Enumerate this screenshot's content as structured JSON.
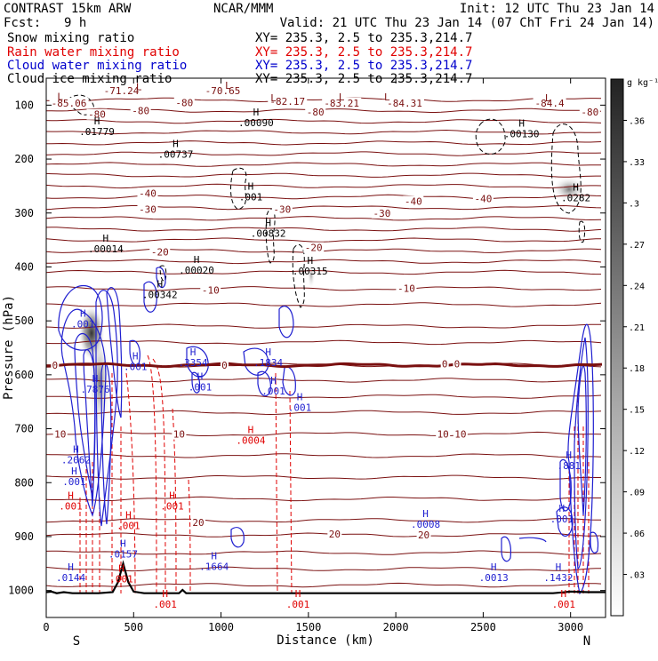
{
  "header": {
    "model": "CONTRAST 15km ARW",
    "institution": "NCAR/MMM",
    "init": "Init: 12 UTC Thu 23 Jan 14",
    "fcst_label": "Fcst:",
    "fcst_value": "9 h",
    "valid": "Valid: 21 UTC Thu 23 Jan 14 (07 ChT Fri 24 Jan 14)"
  },
  "fields": [
    {
      "name": "Snow mixing ratio",
      "xy": "XY= 235.3,  2.5 to 235.3,214.7",
      "color": "#000000"
    },
    {
      "name": "Rain water mixing ratio",
      "xy": "XY= 235.3,  2.5 to 235.3,214.7",
      "color": "#e00000"
    },
    {
      "name": "Cloud water mixing ratio",
      "xy": "XY= 235.3,  2.5 to 235.3,214.7",
      "color": "#0000cc"
    },
    {
      "name": "Cloud ice mixing ratio",
      "xy": "XY= 235.3,  2.5 to 235.3,214.7",
      "color": "#000000"
    }
  ],
  "colors": {
    "temperature": "#7a1010",
    "freezing": "#7a1010",
    "rain": "#e00000",
    "cloud_water": "#1f1fd0",
    "cloud_ice": "#000000",
    "terrain": "#000000"
  },
  "chart_data": {
    "type": "contour",
    "xlabel": "Distance (km)",
    "ylabel": "Pressure (hPa)",
    "xlim": [
      0,
      3200
    ],
    "ylim": [
      1050,
      50
    ],
    "x_ticks": [
      0,
      500,
      1000,
      1500,
      2000,
      2500,
      3000
    ],
    "y_ticks": [
      100,
      200,
      300,
      400,
      500,
      600,
      700,
      800,
      900,
      1000
    ],
    "x_end_labels": {
      "left": "S",
      "right": "N"
    },
    "colorbar": {
      "unit": "g kg⁻¹",
      "ticks": [
        ".03",
        ".06",
        ".09",
        ".12",
        ".15",
        ".18",
        ".21",
        ".24",
        ".27",
        ".3",
        ".33",
        ".36"
      ],
      "range": [
        0,
        0.39
      ]
    },
    "temperature_labels": [
      {
        "text": "-71.24",
        "x": 430,
        "p": 73
      },
      {
        "text": "-70.65",
        "x": 1010,
        "p": 73
      },
      {
        "text": "-85.06",
        "x": 130,
        "p": 96
      },
      {
        "text": "-82.17",
        "x": 1380,
        "p": 93
      },
      {
        "text": "-83.21",
        "x": 1690,
        "p": 96
      },
      {
        "text": "-84.31",
        "x": 2050,
        "p": 96
      },
      {
        "text": "-84.4",
        "x": 2880,
        "p": 96
      },
      {
        "text": "-80",
        "x": 290,
        "p": 117
      },
      {
        "text": "-80",
        "x": 540,
        "p": 110
      },
      {
        "text": "-80",
        "x": 790,
        "p": 95
      },
      {
        "text": "-80",
        "x": 1540,
        "p": 113
      },
      {
        "text": "-80",
        "x": 3110,
        "p": 113
      },
      {
        "text": "-40",
        "x": 580,
        "p": 263
      },
      {
        "text": "-40",
        "x": 2100,
        "p": 278
      },
      {
        "text": "-40",
        "x": 2500,
        "p": 273
      },
      {
        "text": "-30",
        "x": 580,
        "p": 293
      },
      {
        "text": "-30",
        "x": 1350,
        "p": 293
      },
      {
        "text": "-30",
        "x": 1920,
        "p": 300
      },
      {
        "text": "-20",
        "x": 650,
        "p": 372
      },
      {
        "text": "-20",
        "x": 1530,
        "p": 364
      },
      {
        "text": "-10",
        "x": 940,
        "p": 443
      },
      {
        "text": "-10",
        "x": 2060,
        "p": 440
      },
      {
        "text": "0",
        "x": 50,
        "p": 582
      },
      {
        "text": "0",
        "x": 1020,
        "p": 582
      },
      {
        "text": "0",
        "x": 2280,
        "p": 580
      },
      {
        "text": "0",
        "x": 2350,
        "p": 580
      },
      {
        "text": "10",
        "x": 80,
        "p": 710
      },
      {
        "text": "10",
        "x": 760,
        "p": 710
      },
      {
        "text": "10",
        "x": 2270,
        "p": 710
      },
      {
        "text": "10",
        "x": 2370,
        "p": 710
      },
      {
        "text": "20",
        "x": 870,
        "p": 874
      },
      {
        "text": "20",
        "x": 1650,
        "p": 895
      },
      {
        "text": "20",
        "x": 2160,
        "p": 897
      }
    ],
    "extrema_labels": [
      {
        "kind": "L",
        "field": "temperature",
        "x": 80,
        "p": 84
      },
      {
        "kind": "L",
        "field": "temperature",
        "x": 1300,
        "p": 86
      },
      {
        "kind": "L",
        "field": "temperature",
        "x": 1690,
        "p": 85
      },
      {
        "kind": "L",
        "field": "temperature",
        "x": 1950,
        "p": 85
      },
      {
        "kind": "L",
        "field": "temperature",
        "x": 2870,
        "p": 86
      },
      {
        "kind": "L",
        "field": "temperature",
        "x": 1040,
        "p": 63
      },
      {
        "kind": "L",
        "field": "temperature",
        "x": 530,
        "p": 66
      },
      {
        "kind": "H",
        "field": "cloud_ice",
        "value": ".01779",
        "x": 290,
        "p": 141
      },
      {
        "kind": "H",
        "field": "cloud_ice",
        "value": ".00737",
        "x": 740,
        "p": 183
      },
      {
        "kind": "H",
        "field": "cloud_ice",
        "value": ".00090",
        "x": 1200,
        "p": 124
      },
      {
        "kind": "H",
        "field": "cloud_ice",
        "value": ".00130",
        "x": 2720,
        "p": 145
      },
      {
        "kind": "H",
        "field": "cloud_ice",
        "value": ".0282",
        "x": 3030,
        "p": 263
      },
      {
        "kind": "H",
        "field": "cloud_ice",
        "value": ".001",
        "x": 1170,
        "p": 262
      },
      {
        "kind": "H",
        "field": "cloud_ice",
        "value": ".00832",
        "x": 1270,
        "p": 329
      },
      {
        "kind": "H",
        "field": "cloud_ice",
        "value": ".00014",
        "x": 340,
        "p": 358
      },
      {
        "kind": "H",
        "field": "cloud_ice",
        "value": ".00020",
        "x": 860,
        "p": 398
      },
      {
        "kind": "H",
        "field": "cloud_ice",
        "value": ".00315",
        "x": 1510,
        "p": 399
      },
      {
        "kind": "H",
        "field": "cloud_ice",
        "value": ".00342",
        "x": 650,
        "p": 443
      },
      {
        "kind": "H",
        "field": "cloud_water",
        "value": ".001",
        "x": 210,
        "p": 497
      },
      {
        "kind": "H",
        "field": "cloud_water",
        "value": ".3354",
        "x": 840,
        "p": 569
      },
      {
        "kind": "H",
        "field": "cloud_water",
        "value": ".1834",
        "x": 1270,
        "p": 569
      },
      {
        "kind": "H",
        "field": "cloud_water",
        "value": ".7876",
        "x": 280,
        "p": 618
      },
      {
        "kind": "H",
        "field": "cloud_water",
        "value": ".001",
        "x": 880,
        "p": 614
      },
      {
        "kind": "H",
        "field": "cloud_water",
        "value": ".001",
        "x": 1300,
        "p": 622
      },
      {
        "kind": "H",
        "field": "cloud_water",
        "value": ".001",
        "x": 1450,
        "p": 652
      },
      {
        "kind": "H",
        "field": "cloud_water",
        "value": ".001",
        "x": 510,
        "p": 576
      },
      {
        "kind": "H",
        "field": "cloud_water",
        "value": ".2062",
        "x": 170,
        "p": 749
      },
      {
        "kind": "H",
        "field": "cloud_water",
        "value": ".001",
        "x": 160,
        "p": 790
      },
      {
        "kind": "H",
        "field": "cloud_water",
        "value": ".881",
        "x": 2990,
        "p": 760
      },
      {
        "kind": "H",
        "field": "cloud_water",
        "value": ".0008",
        "x": 2170,
        "p": 869
      },
      {
        "kind": "H",
        "field": "cloud_water",
        "value": ".0157",
        "x": 440,
        "p": 924
      },
      {
        "kind": "H",
        "field": "cloud_water",
        "value": ".0144",
        "x": 140,
        "p": 968
      },
      {
        "kind": "H",
        "field": "cloud_water",
        "value": ".1664",
        "x": 960,
        "p": 947
      },
      {
        "kind": "H",
        "field": "cloud_water",
        "value": ".0013",
        "x": 2560,
        "p": 968
      },
      {
        "kind": "H",
        "field": "cloud_water",
        "value": ".1432",
        "x": 2930,
        "p": 968
      },
      {
        "kind": "H",
        "field": "cloud_water",
        "value": ".001",
        "x": 2950,
        "p": 859
      },
      {
        "kind": "H",
        "field": "rain",
        "value": ".0004",
        "x": 1170,
        "p": 713
      },
      {
        "kind": "H",
        "field": "rain",
        "value": ".001",
        "x": 140,
        "p": 835
      },
      {
        "kind": "H",
        "field": "rain",
        "value": ".001",
        "x": 720,
        "p": 835
      },
      {
        "kind": "H",
        "field": "rain",
        "value": ".001",
        "x": 470,
        "p": 871
      },
      {
        "kind": "H",
        "field": "rain",
        "value": ".001",
        "x": 430,
        "p": 970
      },
      {
        "kind": "H",
        "field": "rain",
        "value": ".001",
        "x": 680,
        "p": 1017
      },
      {
        "kind": "H",
        "field": "rain",
        "value": ".001",
        "x": 1440,
        "p": 1017
      },
      {
        "kind": "H",
        "field": "rain",
        "value": ".001",
        "x": 2960,
        "p": 1017
      }
    ],
    "temperature_isotherm_pressures": [
      90,
      110,
      130,
      150,
      170,
      190,
      210,
      230,
      250,
      270,
      290,
      310,
      330,
      350,
      370,
      390,
      410,
      440,
      470,
      510,
      540,
      582,
      610,
      640,
      670,
      710,
      750,
      790,
      830,
      870,
      897,
      930,
      960,
      990
    ],
    "freezing_level_hpa": 582,
    "terrain": [
      [
        0,
        1003
      ],
      [
        30,
        1002
      ],
      [
        60,
        1005
      ],
      [
        100,
        1003
      ],
      [
        150,
        1005
      ],
      [
        200,
        1005
      ],
      [
        250,
        1005
      ],
      [
        300,
        1005
      ],
      [
        380,
        1003
      ],
      [
        410,
        985
      ],
      [
        440,
        950
      ],
      [
        470,
        985
      ],
      [
        500,
        1002
      ],
      [
        560,
        1005
      ],
      [
        700,
        1005
      ],
      [
        760,
        1005
      ],
      [
        780,
        999
      ],
      [
        800,
        1005
      ],
      [
        1000,
        1005
      ],
      [
        1500,
        1005
      ],
      [
        2000,
        1005
      ],
      [
        2500,
        1005
      ],
      [
        2900,
        1005
      ],
      [
        3000,
        1002
      ],
      [
        3100,
        1003
      ],
      [
        3200,
        1003
      ]
    ]
  }
}
